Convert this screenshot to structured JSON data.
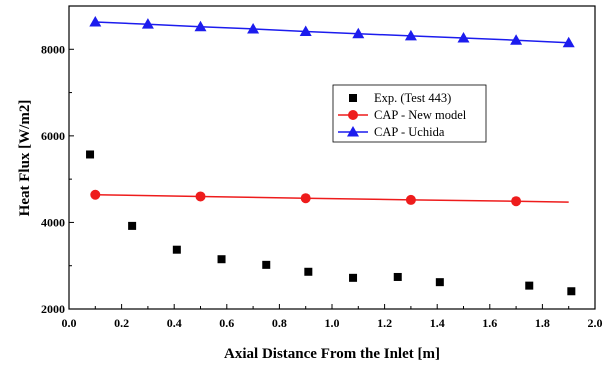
{
  "chart_data": {
    "type": "scatter",
    "xlabel": "Axial Distance From the Inlet [m]",
    "ylabel": "Heat Flux [W/m2]",
    "xlim": [
      0.0,
      2.0
    ],
    "ylim": [
      2000,
      9000
    ],
    "x_ticks": [
      "0.0",
      "0.2",
      "0.4",
      "0.6",
      "0.8",
      "1.0",
      "1.2",
      "1.4",
      "1.6",
      "1.8",
      "2.0"
    ],
    "y_ticks": [
      "2000",
      "4000",
      "6000",
      "8000"
    ],
    "grid": false,
    "legend_position": "center-right",
    "series": [
      {
        "name": "Exp. (Test 443)",
        "marker": "square",
        "color": "#000000",
        "line": false,
        "points": [
          [
            0.08,
            5570
          ],
          [
            0.24,
            3920
          ],
          [
            0.41,
            3370
          ],
          [
            0.58,
            3150
          ],
          [
            0.75,
            3020
          ],
          [
            0.91,
            2860
          ],
          [
            1.08,
            2720
          ],
          [
            1.25,
            2740
          ],
          [
            1.41,
            2620
          ],
          [
            1.75,
            2540
          ],
          [
            1.91,
            2410
          ]
        ]
      },
      {
        "name": "CAP - New model",
        "marker": "circle",
        "color": "#ee1c1c",
        "line": true,
        "points": [
          [
            0.1,
            4640
          ],
          [
            0.5,
            4600
          ],
          [
            0.9,
            4560
          ],
          [
            1.3,
            4520
          ],
          [
            1.7,
            4490
          ],
          [
            1.9,
            4470
          ]
        ],
        "markers_at": [
          0.1,
          0.5,
          0.9,
          1.3,
          1.7
        ]
      },
      {
        "name": "CAP - Uchida",
        "marker": "triangle",
        "color": "#1c1cee",
        "line": true,
        "points": [
          [
            0.1,
            8630
          ],
          [
            0.3,
            8580
          ],
          [
            0.5,
            8520
          ],
          [
            0.7,
            8470
          ],
          [
            0.9,
            8410
          ],
          [
            1.1,
            8360
          ],
          [
            1.3,
            8310
          ],
          [
            1.5,
            8260
          ],
          [
            1.7,
            8210
          ],
          [
            1.9,
            8150
          ]
        ],
        "markers_at": [
          0.1,
          0.3,
          0.5,
          0.7,
          0.9,
          1.1,
          1.3,
          1.5,
          1.7,
          1.9
        ]
      }
    ]
  }
}
